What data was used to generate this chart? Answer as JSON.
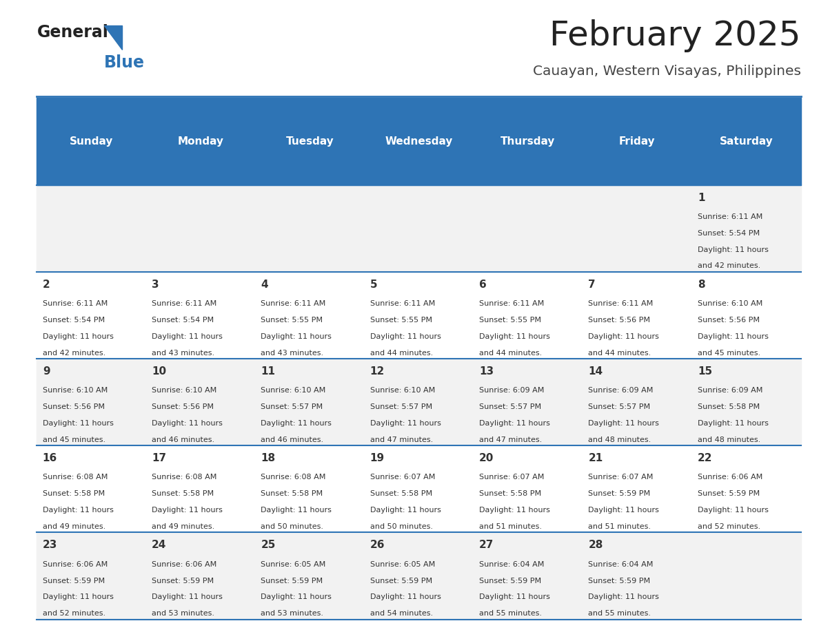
{
  "title": "February 2025",
  "subtitle": "Cauayan, Western Visayas, Philippines",
  "header_bg": "#2E74B5",
  "header_text_color": "#FFFFFF",
  "day_names": [
    "Sunday",
    "Monday",
    "Tuesday",
    "Wednesday",
    "Thursday",
    "Friday",
    "Saturday"
  ],
  "bg_color": "#FFFFFF",
  "cell_bg_light": "#F2F2F2",
  "cell_bg_white": "#FFFFFF",
  "border_color": "#2E74B5",
  "text_color": "#333333",
  "title_color": "#222222",
  "subtitle_color": "#444444",
  "logo_general_color": "#222222",
  "logo_blue_color": "#2E74B5",
  "calendar_data": [
    [
      null,
      null,
      null,
      null,
      null,
      null,
      {
        "day": 1,
        "sunrise": "6:11 AM",
        "sunset": "5:54 PM",
        "daylight1": "11 hours",
        "daylight2": "and 42 minutes."
      }
    ],
    [
      {
        "day": 2,
        "sunrise": "6:11 AM",
        "sunset": "5:54 PM",
        "daylight1": "11 hours",
        "daylight2": "and 42 minutes."
      },
      {
        "day": 3,
        "sunrise": "6:11 AM",
        "sunset": "5:54 PM",
        "daylight1": "11 hours",
        "daylight2": "and 43 minutes."
      },
      {
        "day": 4,
        "sunrise": "6:11 AM",
        "sunset": "5:55 PM",
        "daylight1": "11 hours",
        "daylight2": "and 43 minutes."
      },
      {
        "day": 5,
        "sunrise": "6:11 AM",
        "sunset": "5:55 PM",
        "daylight1": "11 hours",
        "daylight2": "and 44 minutes."
      },
      {
        "day": 6,
        "sunrise": "6:11 AM",
        "sunset": "5:55 PM",
        "daylight1": "11 hours",
        "daylight2": "and 44 minutes."
      },
      {
        "day": 7,
        "sunrise": "6:11 AM",
        "sunset": "5:56 PM",
        "daylight1": "11 hours",
        "daylight2": "and 44 minutes."
      },
      {
        "day": 8,
        "sunrise": "6:10 AM",
        "sunset": "5:56 PM",
        "daylight1": "11 hours",
        "daylight2": "and 45 minutes."
      }
    ],
    [
      {
        "day": 9,
        "sunrise": "6:10 AM",
        "sunset": "5:56 PM",
        "daylight1": "11 hours",
        "daylight2": "and 45 minutes."
      },
      {
        "day": 10,
        "sunrise": "6:10 AM",
        "sunset": "5:56 PM",
        "daylight1": "11 hours",
        "daylight2": "and 46 minutes."
      },
      {
        "day": 11,
        "sunrise": "6:10 AM",
        "sunset": "5:57 PM",
        "daylight1": "11 hours",
        "daylight2": "and 46 minutes."
      },
      {
        "day": 12,
        "sunrise": "6:10 AM",
        "sunset": "5:57 PM",
        "daylight1": "11 hours",
        "daylight2": "and 47 minutes."
      },
      {
        "day": 13,
        "sunrise": "6:09 AM",
        "sunset": "5:57 PM",
        "daylight1": "11 hours",
        "daylight2": "and 47 minutes."
      },
      {
        "day": 14,
        "sunrise": "6:09 AM",
        "sunset": "5:57 PM",
        "daylight1": "11 hours",
        "daylight2": "and 48 minutes."
      },
      {
        "day": 15,
        "sunrise": "6:09 AM",
        "sunset": "5:58 PM",
        "daylight1": "11 hours",
        "daylight2": "and 48 minutes."
      }
    ],
    [
      {
        "day": 16,
        "sunrise": "6:08 AM",
        "sunset": "5:58 PM",
        "daylight1": "11 hours",
        "daylight2": "and 49 minutes."
      },
      {
        "day": 17,
        "sunrise": "6:08 AM",
        "sunset": "5:58 PM",
        "daylight1": "11 hours",
        "daylight2": "and 49 minutes."
      },
      {
        "day": 18,
        "sunrise": "6:08 AM",
        "sunset": "5:58 PM",
        "daylight1": "11 hours",
        "daylight2": "and 50 minutes."
      },
      {
        "day": 19,
        "sunrise": "6:07 AM",
        "sunset": "5:58 PM",
        "daylight1": "11 hours",
        "daylight2": "and 50 minutes."
      },
      {
        "day": 20,
        "sunrise": "6:07 AM",
        "sunset": "5:58 PM",
        "daylight1": "11 hours",
        "daylight2": "and 51 minutes."
      },
      {
        "day": 21,
        "sunrise": "6:07 AM",
        "sunset": "5:59 PM",
        "daylight1": "11 hours",
        "daylight2": "and 51 minutes."
      },
      {
        "day": 22,
        "sunrise": "6:06 AM",
        "sunset": "5:59 PM",
        "daylight1": "11 hours",
        "daylight2": "and 52 minutes."
      }
    ],
    [
      {
        "day": 23,
        "sunrise": "6:06 AM",
        "sunset": "5:59 PM",
        "daylight1": "11 hours",
        "daylight2": "and 52 minutes."
      },
      {
        "day": 24,
        "sunrise": "6:06 AM",
        "sunset": "5:59 PM",
        "daylight1": "11 hours",
        "daylight2": "and 53 minutes."
      },
      {
        "day": 25,
        "sunrise": "6:05 AM",
        "sunset": "5:59 PM",
        "daylight1": "11 hours",
        "daylight2": "and 53 minutes."
      },
      {
        "day": 26,
        "sunrise": "6:05 AM",
        "sunset": "5:59 PM",
        "daylight1": "11 hours",
        "daylight2": "and 54 minutes."
      },
      {
        "day": 27,
        "sunrise": "6:04 AM",
        "sunset": "5:59 PM",
        "daylight1": "11 hours",
        "daylight2": "and 55 minutes."
      },
      {
        "day": 28,
        "sunrise": "6:04 AM",
        "sunset": "5:59 PM",
        "daylight1": "11 hours",
        "daylight2": "and 55 minutes."
      },
      null
    ]
  ]
}
